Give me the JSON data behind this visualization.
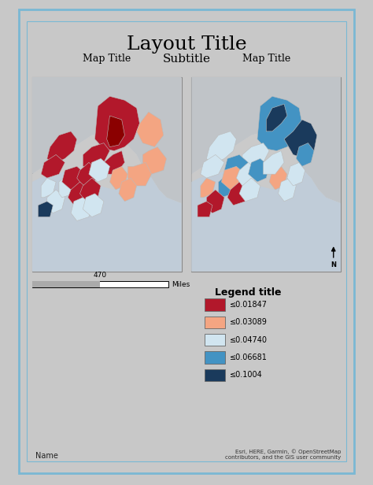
{
  "layout_title": "Layout Title",
  "subtitle": "Subtitle",
  "map_title_left": "Map Title",
  "map_title_right": "Map Title",
  "legend_title": "Legend title",
  "legend_entries": [
    {
      "label": "≤0.01847",
      "color": "#b2182b"
    },
    {
      "label": "≤0.03089",
      "color": "#f4a582"
    },
    {
      "label": "≤0.04740",
      "color": "#d1e5f0"
    },
    {
      "label": "≤0.06681",
      "color": "#4393c3"
    },
    {
      "label": "≤0.1004",
      "color": "#1a3a5c"
    }
  ],
  "scale_bar_label": "470",
  "scale_bar_unit": "Miles",
  "name_label": "Name",
  "attribution": "Esri, HERE, Garmin, © OpenStreetMap\ncontributors, and the GIS user community",
  "background_color": "#ffffff",
  "outer_border_color": "#7ab8d4",
  "inner_border_color": "#aac8dc",
  "map_bg_color": "#d8d8d8",
  "water_color": "#c0ccd8",
  "land_bg_color": "#cacaca",
  "page_bg": "#c8c8c8"
}
